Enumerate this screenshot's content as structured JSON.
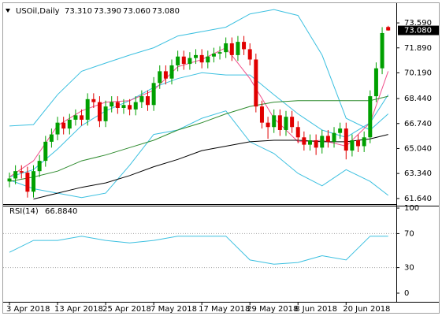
{
  "chart_data": [
    {
      "type": "candlestick",
      "title": "USOil,Daily",
      "header_values": [
        {
          "value": 73.31,
          "label": "73.310"
        },
        {
          "value": 73.39,
          "label": "73.390"
        },
        {
          "value": 73.06,
          "label": "73.060"
        },
        {
          "value": 73.08,
          "label": "73.080"
        }
      ],
      "categories": [
        "3 Apr 2018",
        null,
        null,
        null,
        null,
        null,
        null,
        null,
        "13 Apr 2018",
        null,
        null,
        null,
        null,
        null,
        null,
        null,
        "25 Apr 2018",
        null,
        null,
        null,
        null,
        null,
        null,
        null,
        "7 May 2018",
        null,
        null,
        null,
        null,
        null,
        null,
        null,
        "17 May 2018",
        null,
        null,
        null,
        null,
        null,
        null,
        null,
        "29 May 2018",
        null,
        null,
        null,
        null,
        null,
        null,
        null,
        "8 Jun 2018",
        null,
        null,
        null,
        null,
        null,
        null,
        null,
        "20 Jun 2018",
        null,
        null,
        null,
        null,
        null,
        null,
        null
      ],
      "open": [
        62.8,
        63.0,
        63.5,
        63.4,
        62.1,
        63.5,
        64.2,
        65.5,
        66.0,
        66.8,
        66.4,
        67.0,
        67.3,
        67.0,
        68.4,
        68.2,
        66.9,
        67.9,
        68.2,
        67.8,
        68.0,
        67.7,
        68.2,
        68.6,
        68.0,
        69.5,
        70.3,
        69.8,
        70.7,
        71.3,
        70.8,
        71.2,
        71.4,
        70.9,
        71.3,
        71.5,
        71.6,
        72.2,
        71.4,
        72.3,
        71.8,
        71.1,
        67.9,
        66.8,
        66.5,
        67.3,
        66.3,
        67.2,
        66.5,
        65.8,
        65.3,
        65.6,
        65.1,
        65.9,
        65.5,
        66.1,
        66.4,
        64.9,
        65.6,
        65.2,
        65.8,
        68.6,
        70.5,
        73.31
      ],
      "high": [
        63.4,
        63.9,
        63.9,
        63.8,
        63.9,
        64.6,
        65.9,
        66.4,
        67.2,
        67.2,
        67.4,
        67.7,
        67.7,
        68.8,
        68.8,
        68.6,
        68.3,
        68.6,
        68.6,
        68.4,
        68.4,
        68.6,
        69.0,
        69.0,
        69.9,
        70.7,
        70.7,
        71.1,
        71.7,
        71.7,
        71.6,
        71.8,
        71.8,
        71.7,
        71.9,
        72.0,
        72.6,
        72.6,
        72.7,
        72.7,
        72.2,
        71.5,
        68.3,
        67.2,
        67.7,
        67.7,
        67.6,
        67.6,
        66.9,
        66.2,
        66.0,
        66.0,
        66.3,
        66.3,
        66.5,
        66.8,
        66.8,
        66.0,
        66.0,
        66.2,
        69.0,
        70.9,
        73.3,
        73.39
      ],
      "low": [
        62.4,
        62.6,
        63.0,
        61.7,
        61.7,
        63.1,
        63.8,
        65.1,
        65.6,
        66.0,
        66.0,
        66.6,
        66.6,
        66.6,
        67.8,
        66.5,
        66.5,
        67.5,
        67.4,
        67.4,
        67.3,
        67.3,
        67.8,
        67.6,
        67.6,
        69.1,
        69.4,
        69.4,
        70.3,
        70.4,
        70.4,
        70.8,
        70.5,
        70.5,
        70.9,
        71.1,
        71.2,
        71.0,
        71.0,
        71.4,
        70.7,
        67.5,
        66.4,
        65.7,
        66.1,
        65.9,
        65.9,
        66.1,
        65.4,
        64.9,
        64.9,
        64.6,
        64.7,
        65.1,
        65.1,
        65.7,
        64.3,
        64.5,
        64.8,
        64.8,
        65.4,
        68.2,
        70.1,
        73.06
      ],
      "close": [
        63.0,
        63.5,
        63.4,
        62.1,
        63.5,
        64.2,
        65.5,
        66.0,
        66.8,
        66.4,
        67.0,
        67.3,
        67.0,
        68.4,
        68.2,
        66.9,
        67.9,
        68.2,
        67.8,
        68.0,
        67.7,
        68.2,
        68.6,
        68.0,
        69.5,
        70.3,
        69.8,
        70.7,
        71.3,
        70.8,
        71.2,
        71.4,
        70.9,
        71.3,
        71.5,
        71.6,
        72.2,
        71.4,
        72.3,
        71.8,
        71.1,
        67.9,
        66.8,
        66.5,
        67.3,
        66.3,
        67.2,
        66.5,
        65.8,
        65.3,
        65.6,
        65.1,
        65.9,
        65.5,
        66.1,
        66.4,
        64.9,
        65.6,
        65.2,
        65.8,
        68.6,
        70.5,
        72.9,
        73.08
      ],
      "up_color": "#00a000",
      "down_color": "#e00000",
      "lines": {
        "x": [
          0,
          4,
          8,
          12,
          16,
          20,
          24,
          28,
          32,
          36,
          40,
          44,
          48,
          52,
          56,
          60,
          63
        ],
        "series": [
          {
            "color": "#3cc0e0",
            "values": [
              66.57,
              66.67,
              68.7,
              70.3,
              70.86,
              71.4,
              71.9,
              72.7,
              73.0,
              73.3,
              74.2,
              74.5,
              74.1,
              71.4,
              67.1,
              66.3,
              67.4
            ]
          },
          {
            "color": "#3cc0e0",
            "values": [
              63.1,
              63.6,
              65.0,
              66.6,
              67.6,
              68.3,
              69.2,
              69.8,
              70.2,
              70.05,
              70.05,
              68.7,
              67.4,
              66.3,
              65.8,
              66.8,
              68.7
            ]
          },
          {
            "color": "#3cc0e0",
            "values": [
              62.9,
              62.3,
              62.0,
              61.7,
              62.0,
              63.9,
              66.0,
              66.3,
              67.1,
              67.6,
              65.5,
              64.7,
              63.35,
              62.5,
              63.6,
              62.8,
              61.85
            ]
          },
          {
            "color": "#f0508c",
            "values": [
              63.1,
              64.2,
              66.6,
              67.6,
              68.2,
              68.3,
              69.0,
              70.6,
              71.1,
              71.9,
              69.8,
              67.1,
              65.5,
              65.6,
              65.2,
              66.8,
              70.3
            ]
          },
          {
            "color": "#2e8b2e",
            "values": [
              62.8,
              63.1,
              63.5,
              64.2,
              64.6,
              65.1,
              65.6,
              66.3,
              66.8,
              67.4,
              67.9,
              68.2,
              68.3,
              68.3,
              68.3,
              68.3,
              68.6
            ]
          },
          {
            "color": "#000000",
            "values": [
              null,
              61.6,
              62.0,
              62.4,
              62.7,
              63.2,
              63.8,
              64.3,
              64.9,
              65.2,
              65.5,
              65.6,
              65.6,
              65.5,
              65.5,
              65.7,
              66.0
            ]
          }
        ]
      },
      "last_price": {
        "value": 73.08,
        "label": "73.080"
      },
      "ylim": [
        61.31,
        74.72
      ],
      "yticks": [
        {
          "value": 73.59,
          "label": "73.590"
        },
        {
          "value": 71.89,
          "label": "71.890"
        },
        {
          "value": 70.19,
          "label": "70.190"
        },
        {
          "value": 68.44,
          "label": "68.440"
        },
        {
          "value": 66.74,
          "label": "66.740"
        },
        {
          "value": 65.04,
          "label": "65.040"
        },
        {
          "value": 63.34,
          "label": "63.340"
        },
        {
          "value": 61.64,
          "label": "61.640"
        }
      ]
    },
    {
      "type": "line",
      "title": "RSI(14)",
      "current": {
        "value": 66.884,
        "label": "66.8840"
      },
      "x": [
        0,
        4,
        8,
        12,
        16,
        20,
        24,
        28,
        32,
        36,
        40,
        44,
        48,
        52,
        56,
        60,
        63
      ],
      "values": [
        48,
        62,
        62,
        67,
        62,
        59,
        62,
        67,
        67,
        67,
        39,
        34,
        36,
        44,
        39,
        67,
        66.9
      ],
      "color": "#3cc0e0",
      "levels": [
        70,
        30
      ],
      "ylim": [
        -10.2,
        101.9
      ],
      "yticks": [
        100,
        70,
        30,
        0
      ]
    }
  ]
}
